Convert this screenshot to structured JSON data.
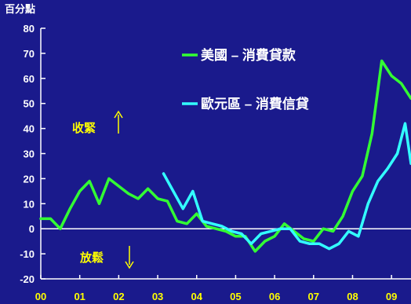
{
  "chart_data": {
    "type": "line",
    "title": "",
    "unit_label": "百分點",
    "ylim": [
      -20,
      80
    ],
    "y_ticks": [
      -20,
      -10,
      0,
      10,
      20,
      30,
      40,
      50,
      60,
      70,
      80
    ],
    "x_ticks": [
      "00",
      "01",
      "02",
      "03",
      "04",
      "05",
      "06",
      "07",
      "08",
      "09"
    ],
    "xlim": [
      2000.0,
      2009.5
    ],
    "grid": false,
    "legend_position": "top-right",
    "annotations": {
      "up": "收緊",
      "down": "放鬆"
    },
    "series": [
      {
        "name": "美國 – 消費貸款",
        "color": "#33ff33",
        "x": [
          2000.0,
          2000.25,
          2000.5,
          2000.75,
          2001.0,
          2001.25,
          2001.5,
          2001.75,
          2002.0,
          2002.25,
          2002.5,
          2002.75,
          2003.0,
          2003.25,
          2003.5,
          2003.75,
          2004.0,
          2004.25,
          2004.5,
          2004.75,
          2005.0,
          2005.25,
          2005.5,
          2005.75,
          2006.0,
          2006.25,
          2006.5,
          2006.75,
          2007.0,
          2007.25,
          2007.5,
          2007.75,
          2008.0,
          2008.25,
          2008.5,
          2008.75,
          2009.0,
          2009.25,
          2009.5
        ],
        "values": [
          4,
          4,
          0,
          8,
          15,
          19,
          10,
          20,
          17,
          14,
          12,
          16,
          12,
          11,
          3,
          2,
          6,
          1,
          0,
          -1,
          -3,
          -3,
          -9,
          -5,
          -3,
          2,
          -1,
          -4,
          -5,
          0,
          -1,
          5,
          15,
          21,
          38,
          67,
          61,
          58,
          52
        ]
      },
      {
        "name": "歐元區 – 消費信貸",
        "color": "#33ffff",
        "x": [
          2003.15,
          2003.4,
          2003.65,
          2003.9,
          2004.15,
          2004.4,
          2004.65,
          2004.9,
          2005.15,
          2005.4,
          2005.65,
          2005.9,
          2006.15,
          2006.4,
          2006.65,
          2006.9,
          2007.15,
          2007.4,
          2007.65,
          2007.9,
          2008.15,
          2008.4,
          2008.65,
          2008.9,
          2009.15,
          2009.35,
          2009.5
        ],
        "values": [
          22,
          15,
          8,
          15,
          3,
          2,
          1,
          -1,
          -2,
          -6,
          -2,
          -1,
          0,
          0,
          -5,
          -6,
          -6,
          -8,
          -6,
          -1,
          -3,
          10,
          19,
          24,
          30,
          42,
          26
        ]
      }
    ]
  }
}
